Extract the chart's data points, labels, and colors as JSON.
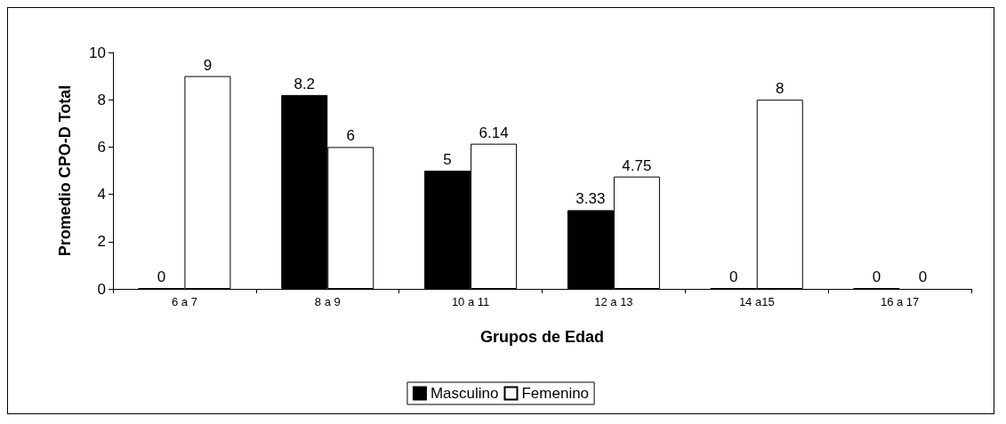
{
  "chart_data": {
    "type": "bar",
    "xlabel": "Grupos de Edad",
    "ylabel": "Promedio CPO-D Total",
    "categories": [
      "6 a 7",
      "8 a 9",
      "10 a 11",
      "12 a 13",
      "14 a15",
      "16 a 17"
    ],
    "series": [
      {
        "name": "Masculino",
        "color": "#000000",
        "values": [
          0,
          8.2,
          5,
          3.33,
          0,
          0
        ]
      },
      {
        "name": "Femenino",
        "color": "#ffffff",
        "values": [
          9,
          6,
          6.14,
          4.75,
          8,
          0
        ]
      }
    ],
    "ylim": [
      0,
      10
    ],
    "yticks": [
      0,
      2,
      4,
      6,
      8,
      10
    ],
    "grid": false,
    "legend": "bottom",
    "data_labels": true
  }
}
